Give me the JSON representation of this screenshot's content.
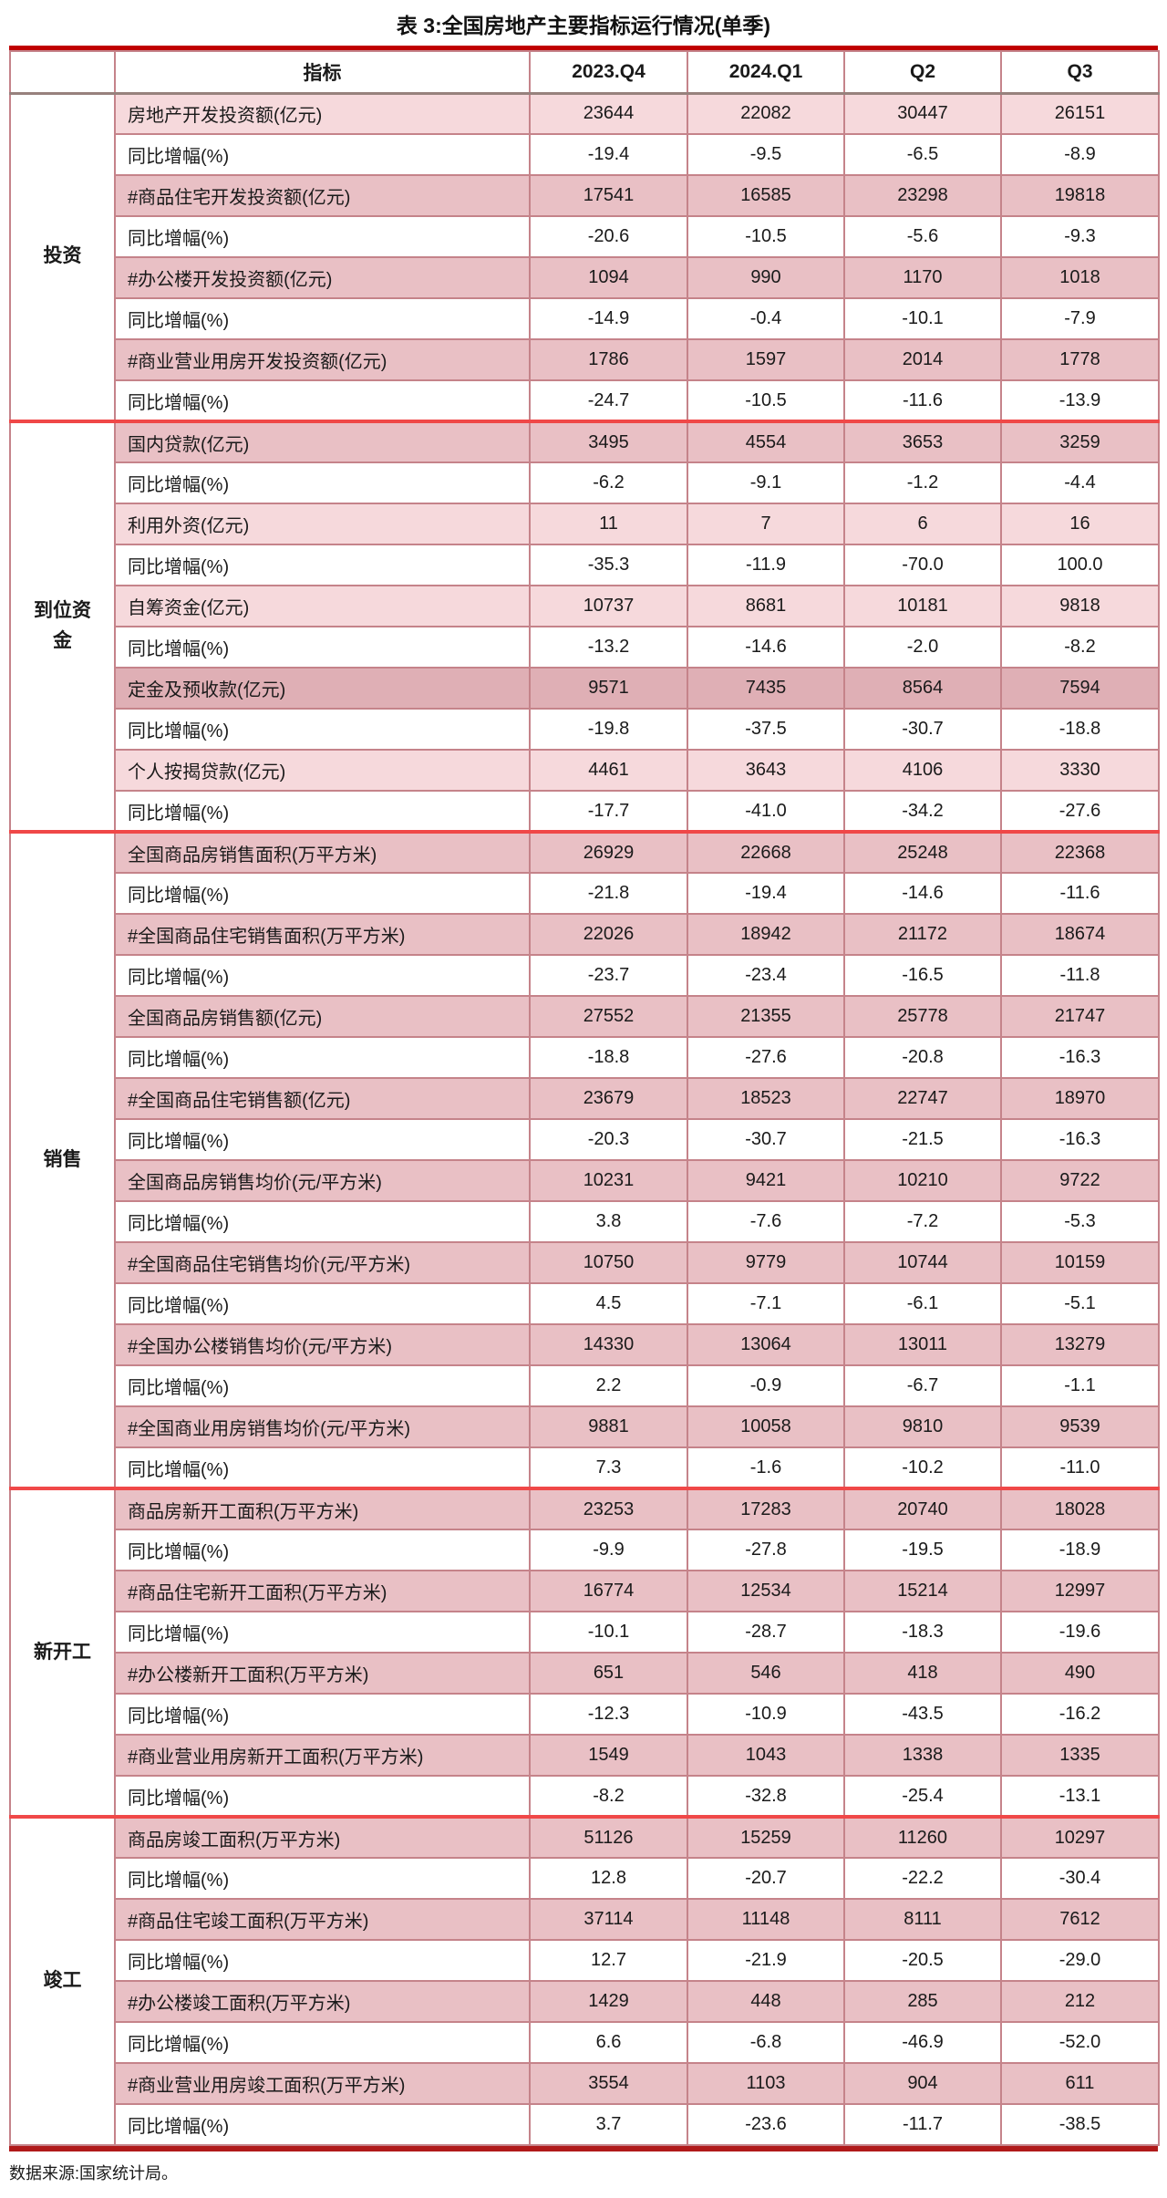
{
  "title": "表 3:全国房地产主要指标运行情况(单季)",
  "source_note": "数据来源:国家统计局。",
  "header": {
    "indicator": "指标",
    "periods": [
      "2023.Q4",
      "2024.Q1",
      "Q2",
      "Q3"
    ]
  },
  "colors": {
    "top_border_red": "#c00000",
    "section_separator_red": "#f04848",
    "cell_border_rose": "#c5838a",
    "row_pink_light": "#f6d9dc",
    "row_pink_mid": "#e9c0c5",
    "row_pink_dark": "#dfafb5"
  },
  "sections": [
    {
      "group": "投资",
      "rows": [
        {
          "label": "房地产开发投资额(亿元)",
          "values": [
            "23644",
            "22082",
            "30447",
            "26151"
          ],
          "shade": "light"
        },
        {
          "label": "同比增幅(%)",
          "values": [
            "-19.4",
            "-9.5",
            "-6.5",
            "-8.9"
          ],
          "shade": "white"
        },
        {
          "label": "#商品住宅开发投资额(亿元)",
          "values": [
            "17541",
            "16585",
            "23298",
            "19818"
          ],
          "shade": "mid"
        },
        {
          "label": "同比增幅(%)",
          "values": [
            "-20.6",
            "-10.5",
            "-5.6",
            "-9.3"
          ],
          "shade": "white"
        },
        {
          "label": "#办公楼开发投资额(亿元)",
          "values": [
            "1094",
            "990",
            "1170",
            "1018"
          ],
          "shade": "mid"
        },
        {
          "label": "同比增幅(%)",
          "values": [
            "-14.9",
            "-0.4",
            "-10.1",
            "-7.9"
          ],
          "shade": "white"
        },
        {
          "label": "#商业营业用房开发投资额(亿元)",
          "values": [
            "1786",
            "1597",
            "2014",
            "1778"
          ],
          "shade": "mid"
        },
        {
          "label": "同比增幅(%)",
          "values": [
            "-24.7",
            "-10.5",
            "-11.6",
            "-13.9"
          ],
          "shade": "white"
        }
      ]
    },
    {
      "group": "到位资\n金",
      "rows": [
        {
          "label": "国内贷款(亿元)",
          "values": [
            "3495",
            "4554",
            "3653",
            "3259"
          ],
          "shade": "mid"
        },
        {
          "label": "同比增幅(%)",
          "values": [
            "-6.2",
            "-9.1",
            "-1.2",
            "-4.4"
          ],
          "shade": "white"
        },
        {
          "label": "利用外资(亿元)",
          "values": [
            "11",
            "7",
            "6",
            "16"
          ],
          "shade": "light"
        },
        {
          "label": "同比增幅(%)",
          "values": [
            "-35.3",
            "-11.9",
            "-70.0",
            "100.0"
          ],
          "shade": "white"
        },
        {
          "label": "自筹资金(亿元)",
          "values": [
            "10737",
            "8681",
            "10181",
            "9818"
          ],
          "shade": "light"
        },
        {
          "label": "同比增幅(%)",
          "values": [
            "-13.2",
            "-14.6",
            "-2.0",
            "-8.2"
          ],
          "shade": "white"
        },
        {
          "label": "定金及预收款(亿元)",
          "values": [
            "9571",
            "7435",
            "8564",
            "7594"
          ],
          "shade": "dark"
        },
        {
          "label": "同比增幅(%)",
          "values": [
            "-19.8",
            "-37.5",
            "-30.7",
            "-18.8"
          ],
          "shade": "white"
        },
        {
          "label": "个人按揭贷款(亿元)",
          "values": [
            "4461",
            "3643",
            "4106",
            "3330"
          ],
          "shade": "light"
        },
        {
          "label": "同比增幅(%)",
          "values": [
            "-17.7",
            "-41.0",
            "-34.2",
            "-27.6"
          ],
          "shade": "white"
        }
      ]
    },
    {
      "group": "销售",
      "rows": [
        {
          "label": "全国商品房销售面积(万平方米)",
          "values": [
            "26929",
            "22668",
            "25248",
            "22368"
          ],
          "shade": "mid"
        },
        {
          "label": "同比增幅(%)",
          "values": [
            "-21.8",
            "-19.4",
            "-14.6",
            "-11.6"
          ],
          "shade": "white"
        },
        {
          "label": "#全国商品住宅销售面积(万平方米)",
          "values": [
            "22026",
            "18942",
            "21172",
            "18674"
          ],
          "shade": "mid"
        },
        {
          "label": "同比增幅(%)",
          "values": [
            "-23.7",
            "-23.4",
            "-16.5",
            "-11.8"
          ],
          "shade": "white"
        },
        {
          "label": "全国商品房销售额(亿元)",
          "values": [
            "27552",
            "21355",
            "25778",
            "21747"
          ],
          "shade": "mid"
        },
        {
          "label": "同比增幅(%)",
          "values": [
            "-18.8",
            "-27.6",
            "-20.8",
            "-16.3"
          ],
          "shade": "white"
        },
        {
          "label": "#全国商品住宅销售额(亿元)",
          "values": [
            "23679",
            "18523",
            "22747",
            "18970"
          ],
          "shade": "mid"
        },
        {
          "label": "同比增幅(%)",
          "values": [
            "-20.3",
            "-30.7",
            "-21.5",
            "-16.3"
          ],
          "shade": "white"
        },
        {
          "label": "全国商品房销售均价(元/平方米)",
          "values": [
            "10231",
            "9421",
            "10210",
            "9722"
          ],
          "shade": "mid"
        },
        {
          "label": "同比增幅(%)",
          "values": [
            "3.8",
            "-7.6",
            "-7.2",
            "-5.3"
          ],
          "shade": "white"
        },
        {
          "label": "#全国商品住宅销售均价(元/平方米)",
          "values": [
            "10750",
            "9779",
            "10744",
            "10159"
          ],
          "shade": "mid"
        },
        {
          "label": "同比增幅(%)",
          "values": [
            "4.5",
            "-7.1",
            "-6.1",
            "-5.1"
          ],
          "shade": "white"
        },
        {
          "label": "#全国办公楼销售均价(元/平方米)",
          "values": [
            "14330",
            "13064",
            "13011",
            "13279"
          ],
          "shade": "mid"
        },
        {
          "label": "同比增幅(%)",
          "values": [
            "2.2",
            "-0.9",
            "-6.7",
            "-1.1"
          ],
          "shade": "white"
        },
        {
          "label": "#全国商业用房销售均价(元/平方米)",
          "values": [
            "9881",
            "10058",
            "9810",
            "9539"
          ],
          "shade": "mid"
        },
        {
          "label": "同比增幅(%)",
          "values": [
            "7.3",
            "-1.6",
            "-10.2",
            "-11.0"
          ],
          "shade": "white"
        }
      ]
    },
    {
      "group": "新开工",
      "rows": [
        {
          "label": "商品房新开工面积(万平方米)",
          "values": [
            "23253",
            "17283",
            "20740",
            "18028"
          ],
          "shade": "mid"
        },
        {
          "label": "同比增幅(%)",
          "values": [
            "-9.9",
            "-27.8",
            "-19.5",
            "-18.9"
          ],
          "shade": "white"
        },
        {
          "label": "#商品住宅新开工面积(万平方米)",
          "values": [
            "16774",
            "12534",
            "15214",
            "12997"
          ],
          "shade": "mid"
        },
        {
          "label": "同比增幅(%)",
          "values": [
            "-10.1",
            "-28.7",
            "-18.3",
            "-19.6"
          ],
          "shade": "white"
        },
        {
          "label": "#办公楼新开工面积(万平方米)",
          "values": [
            "651",
            "546",
            "418",
            "490"
          ],
          "shade": "mid"
        },
        {
          "label": "同比增幅(%)",
          "values": [
            "-12.3",
            "-10.9",
            "-43.5",
            "-16.2"
          ],
          "shade": "white"
        },
        {
          "label": "#商业营业用房新开工面积(万平方米)",
          "values": [
            "1549",
            "1043",
            "1338",
            "1335"
          ],
          "shade": "mid"
        },
        {
          "label": "同比增幅(%)",
          "values": [
            "-8.2",
            "-32.8",
            "-25.4",
            "-13.1"
          ],
          "shade": "white"
        }
      ]
    },
    {
      "group": "竣工",
      "rows": [
        {
          "label": "商品房竣工面积(万平方米)",
          "values": [
            "51126",
            "15259",
            "11260",
            "10297"
          ],
          "shade": "mid"
        },
        {
          "label": "同比增幅(%)",
          "values": [
            "12.8",
            "-20.7",
            "-22.2",
            "-30.4"
          ],
          "shade": "white"
        },
        {
          "label": "#商品住宅竣工面积(万平方米)",
          "values": [
            "37114",
            "11148",
            "8111",
            "7612"
          ],
          "shade": "mid"
        },
        {
          "label": "同比增幅(%)",
          "values": [
            "12.7",
            "-21.9",
            "-20.5",
            "-29.0"
          ],
          "shade": "white"
        },
        {
          "label": "#办公楼竣工面积(万平方米)",
          "values": [
            "1429",
            "448",
            "285",
            "212"
          ],
          "shade": "mid"
        },
        {
          "label": "同比增幅(%)",
          "values": [
            "6.6",
            "-6.8",
            "-46.9",
            "-52.0"
          ],
          "shade": "white"
        },
        {
          "label": "#商业营业用房竣工面积(万平方米)",
          "values": [
            "3554",
            "1103",
            "904",
            "611"
          ],
          "shade": "mid"
        },
        {
          "label": "同比增幅(%)",
          "values": [
            "3.7",
            "-23.6",
            "-11.7",
            "-38.5"
          ],
          "shade": "white"
        }
      ]
    }
  ]
}
